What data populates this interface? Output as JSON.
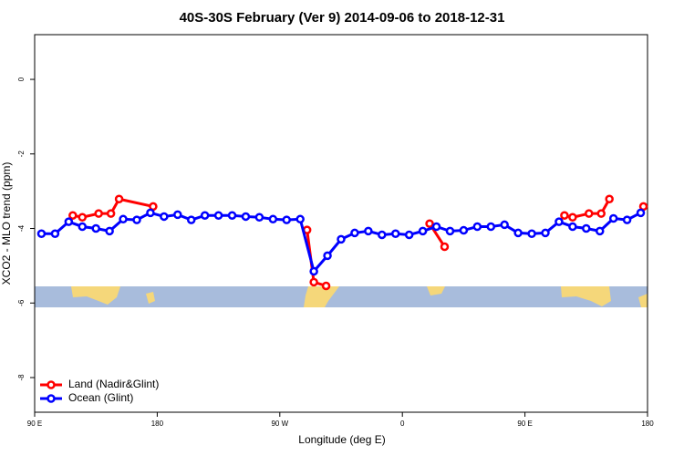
{
  "chart_data": {
    "type": "line",
    "title": "40S-30S February (Ver 9)   2014-09-06 to 2018-12-31",
    "x_label": "Longitude (deg E)",
    "y_label": "XCO2 - MLO trend (ppm)",
    "xlim": [
      90,
      540
    ],
    "ylim": [
      -8.93,
      1.2
    ],
    "xticks": [
      {
        "value": 90,
        "label": "90 E"
      },
      180,
      {
        "value": 270,
        "label": "90 W"
      },
      {
        "value": 360,
        "label": "0"
      },
      {
        "value": 450,
        "label": "90 E"
      },
      {
        "value": 540,
        "label": "180"
      }
    ],
    "yticks": [
      0,
      -2,
      -4,
      -6,
      -8
    ],
    "legend": "bottom-left",
    "series": [
      {
        "name": "Land (Nadir&Glint)",
        "color": "#ff0000",
        "x": [
          118,
          125,
          137,
          146,
          152,
          177,
          null,
          290,
          295,
          304,
          null,
          380,
          391,
          null,
          479,
          485,
          497,
          506,
          512,
          null,
          537
        ],
        "values": [
          -3.65,
          -3.7,
          -3.6,
          -3.6,
          -3.21,
          -3.41,
          null,
          -4.04,
          -5.44,
          -5.54,
          null,
          -3.87,
          -4.49,
          null,
          -3.65,
          -3.7,
          -3.6,
          -3.6,
          -3.21,
          null,
          -3.41
        ]
      },
      {
        "name": "Ocean (Glint)",
        "color": "#0000ff",
        "x": [
          95,
          105,
          115,
          125,
          135,
          145,
          155,
          165,
          175,
          185,
          195,
          205,
          215,
          225,
          235,
          245,
          255,
          265,
          275,
          285,
          295,
          305,
          315,
          325,
          335,
          345,
          355,
          365,
          375,
          385,
          395,
          405,
          415,
          425,
          435,
          445,
          455,
          465,
          475,
          485,
          495,
          505,
          515,
          525,
          535
        ],
        "values": [
          -4.14,
          -4.14,
          -3.82,
          -3.95,
          -4.0,
          -4.07,
          -3.75,
          -3.77,
          -3.58,
          -3.68,
          -3.63,
          -3.77,
          -3.65,
          -3.65,
          -3.65,
          -3.68,
          -3.7,
          -3.75,
          -3.77,
          -3.75,
          -5.15,
          -4.73,
          -4.29,
          -4.12,
          -4.07,
          -4.17,
          -4.14,
          -4.17,
          -4.07,
          -3.95,
          -4.07,
          -4.05,
          -3.95,
          -3.95,
          -3.9,
          -4.12,
          -4.14,
          -4.12,
          -3.82,
          -3.95,
          -4.0,
          -4.07,
          -3.73,
          -3.77,
          -3.58
        ]
      }
    ]
  }
}
